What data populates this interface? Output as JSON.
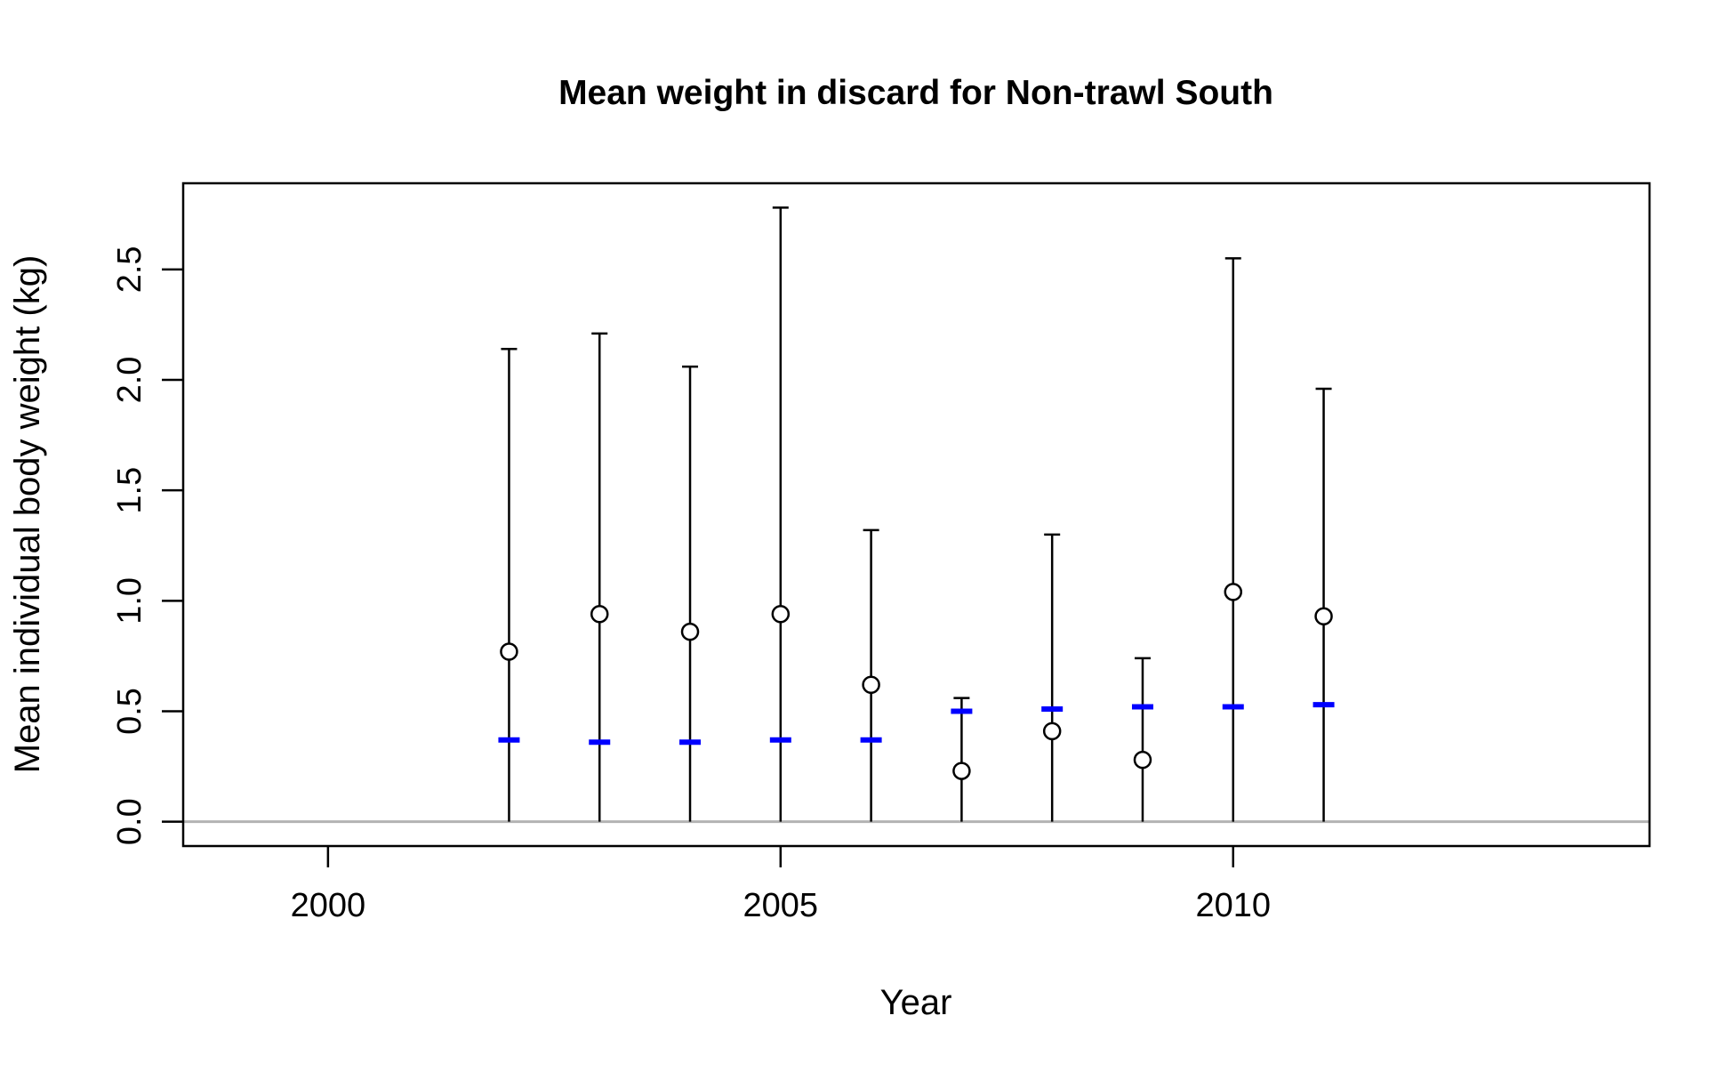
{
  "chart_data": {
    "type": "scatter",
    "title": "Mean weight in discard for Non-trawl South",
    "xlabel": "Year",
    "ylabel": "Mean individual body weight (kg)",
    "xlim": [
      1998.4,
      2014.6
    ],
    "ylim": [
      -0.11,
      2.89
    ],
    "x_ticks": [
      2000,
      2005,
      2010
    ],
    "y_ticks": [
      0.0,
      0.5,
      1.0,
      1.5,
      2.0,
      2.5
    ],
    "y_tick_labels": [
      "0.0",
      "0.5",
      "1.0",
      "1.5",
      "2.0",
      "2.5"
    ],
    "reference_line_y": 0,
    "series": [
      {
        "marker": "open-circle",
        "color": "#000000",
        "x": [
          2002,
          2003,
          2004,
          2005,
          2006,
          2007,
          2008,
          2009,
          2010,
          2011
        ],
        "y": [
          0.77,
          0.94,
          0.86,
          0.94,
          0.62,
          0.23,
          0.41,
          0.28,
          1.04,
          0.93
        ],
        "upper": [
          2.14,
          2.21,
          2.06,
          2.78,
          1.32,
          0.56,
          1.3,
          0.74,
          2.55,
          1.96
        ],
        "lower": [
          0,
          0,
          0,
          0,
          0,
          0,
          0,
          0,
          0,
          0
        ]
      },
      {
        "marker": "dash",
        "color": "#0000ff",
        "x": [
          2002,
          2003,
          2004,
          2005,
          2006,
          2007,
          2008,
          2009,
          2010,
          2011
        ],
        "y": [
          0.37,
          0.36,
          0.36,
          0.37,
          0.37,
          0.5,
          0.51,
          0.52,
          0.52,
          0.53
        ]
      }
    ],
    "grid": false,
    "legend": "none"
  }
}
